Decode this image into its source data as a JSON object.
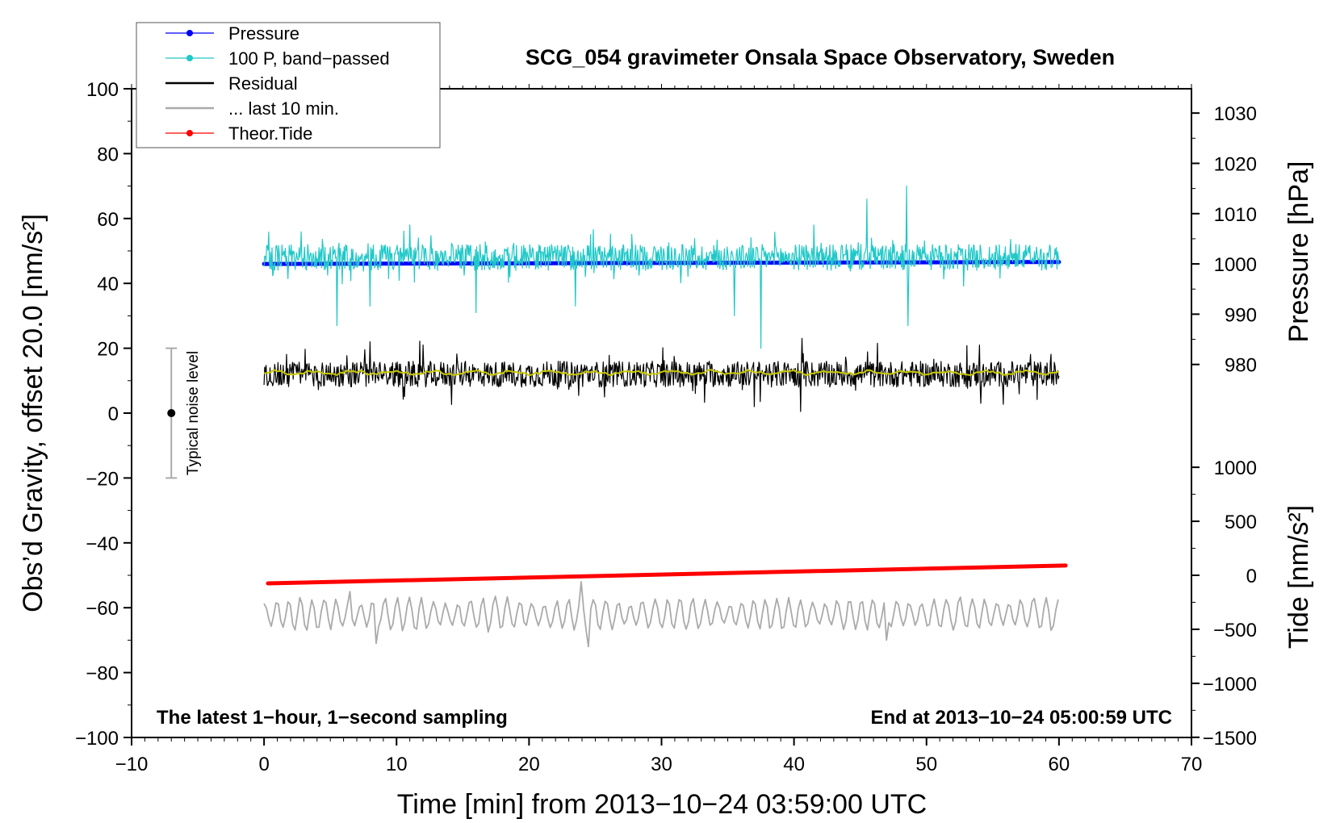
{
  "chart_data": {
    "type": "line",
    "title": "SCG_054 gravimeter Onsala Space Observatory, Sweden",
    "xlabel": "Time [min] from 2013−10−24 03:59:00 UTC",
    "ylabel": "Obs’d Gravity, offset 20.0 [nm/s²]",
    "xlim": [
      -10,
      70
    ],
    "ylim": [
      -100,
      100
    ],
    "x_ticks": [
      -10,
      0,
      10,
      20,
      30,
      40,
      50,
      60,
      70
    ],
    "x_tick_labels": [
      "−10",
      "0",
      "10",
      "20",
      "30",
      "40",
      "50",
      "60",
      "70"
    ],
    "y_ticks": [
      -100,
      -80,
      -60,
      -40,
      -20,
      0,
      20,
      40,
      60,
      80,
      100
    ],
    "y_tick_labels": [
      "−100",
      "−80",
      "−60",
      "−40",
      "−20",
      "0",
      "20",
      "40",
      "60",
      "80",
      "100"
    ],
    "right_axes": [
      {
        "label": "Pressure [hPa]",
        "ticks": [
          980,
          990,
          1000,
          1010,
          1020,
          1030
        ],
        "tick_labels": [
          "980",
          "990",
          "1000",
          "1010",
          "1020",
          "1030"
        ],
        "gravity_ref": {
          "value": 1000,
          "gravity": 46.0
        },
        "gravity_per_unit": 1.55
      },
      {
        "label": "Tide [nm/s²]",
        "ticks": [
          -1500,
          -1000,
          -500,
          0,
          500,
          1000
        ],
        "tick_labels": [
          "−1500",
          "−1000",
          "−500",
          "0",
          "500",
          "1000"
        ],
        "gravity_ref": {
          "value": 0,
          "gravity": -50.0
        },
        "gravity_per_unit": 0.0333
      }
    ],
    "notes": {
      "left": "The latest 1−hour, 1−second sampling",
      "right": "End at 2013−10−24 05:00:59 UTC"
    },
    "noise_bar": {
      "label": "Typical noise level",
      "x": -7,
      "center": 0,
      "low": -20,
      "high": 20
    },
    "legend": [
      {
        "label": "Pressure",
        "color": "#0000ff",
        "marker": true,
        "width": 1
      },
      {
        "label": "100 P, band−passed",
        "color": "#20c8c8",
        "marker": true,
        "width": 1
      },
      {
        "label": "Residual",
        "color": "#000000",
        "marker": false,
        "width": 2
      },
      {
        "label": "... last 10 min.",
        "color": "#aaaaaa",
        "marker": false,
        "width": 2
      },
      {
        "label": "Theor.Tide",
        "color": "#ff0000",
        "marker": true,
        "width": 1
      }
    ],
    "series": [
      {
        "name": "Pressure",
        "color": "#0000ff",
        "style": "thick",
        "start": [
          0,
          46.0
        ],
        "end": [
          60,
          46.6
        ],
        "unit_value_start": 1000.0,
        "unit_value_end": 1000.4
      },
      {
        "name": "100 P, band−passed",
        "color": "#20c8c8",
        "style": "noise",
        "x_range": [
          0,
          60
        ],
        "mean": 48,
        "amplitude": 4,
        "spikes": [
          [
            5.5,
            27
          ],
          [
            8,
            33
          ],
          [
            11,
            58
          ],
          [
            16,
            31
          ],
          [
            23.5,
            33
          ],
          [
            35.5,
            30
          ],
          [
            37.5,
            20
          ],
          [
            41.5,
            58
          ],
          [
            45.5,
            66
          ],
          [
            48.5,
            70
          ],
          [
            48.6,
            27
          ]
        ]
      },
      {
        "name": "Residual",
        "color": "#000000",
        "style": "noise",
        "x_range": [
          0,
          60
        ],
        "mean": 12,
        "amplitude": 4,
        "spikes": [
          [
            8,
            22
          ],
          [
            12,
            21
          ],
          [
            37,
            2
          ],
          [
            40.5,
            0.5
          ],
          [
            40.6,
            23
          ],
          [
            54,
            21
          ],
          [
            54.1,
            3
          ]
        ]
      },
      {
        "name": "Residual (smoothed)",
        "color": "#c8c800",
        "style": "smooth",
        "x_range": [
          0,
          60
        ],
        "mean": 12.5,
        "amplitude": 0.8
      },
      {
        "name": "... last 10 min.",
        "color": "#aaaaaa",
        "style": "oscillation",
        "x_range": [
          0,
          60
        ],
        "mean": -62,
        "amplitude": 4,
        "spikes": [
          [
            6.5,
            -55
          ],
          [
            8.5,
            -71
          ],
          [
            24,
            -52
          ],
          [
            24.5,
            -72
          ],
          [
            47,
            -70
          ]
        ]
      },
      {
        "name": "Theor.Tide",
        "color": "#ff0000",
        "style": "thick",
        "start": [
          0.3,
          -52.5
        ],
        "end": [
          60.5,
          -47
        ],
        "unit_value_start": -75,
        "unit_value_end": 90
      }
    ]
  }
}
